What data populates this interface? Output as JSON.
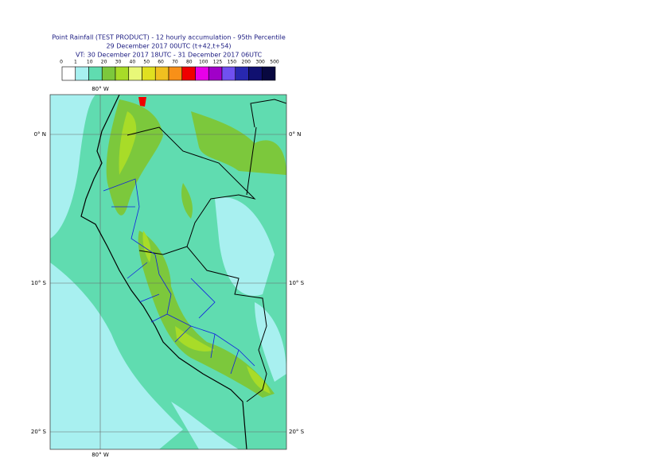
{
  "header": {
    "lines": [
      "Point Rainfall (TEST PRODUCT) - 12 hourly accumulation - 95th Percentile",
      "29 December 2017 00UTC (t+42,t+54)",
      "VT: 30 December 2017 18UTC - 31 December 2017 06UTC"
    ]
  },
  "legend": {
    "labels": [
      "0",
      "1",
      "10",
      "20",
      "30",
      "40",
      "50",
      "60",
      "70",
      "80",
      "100",
      "125",
      "150",
      "200",
      "300",
      "500"
    ],
    "colors": [
      "#ffffff",
      "#a8f0f0",
      "#60dcb0",
      "#7cc83c",
      "#a8dc28",
      "#e8f878",
      "#e0e020",
      "#f0c020",
      "#f89018",
      "#f00000",
      "#e800e8",
      "#a000c8",
      "#7050f0",
      "#2828b0",
      "#101070",
      "#080840"
    ]
  },
  "map": {
    "lon_label": "80° W",
    "lat_labels": [
      "0° N",
      "10° S",
      "20° S"
    ]
  }
}
